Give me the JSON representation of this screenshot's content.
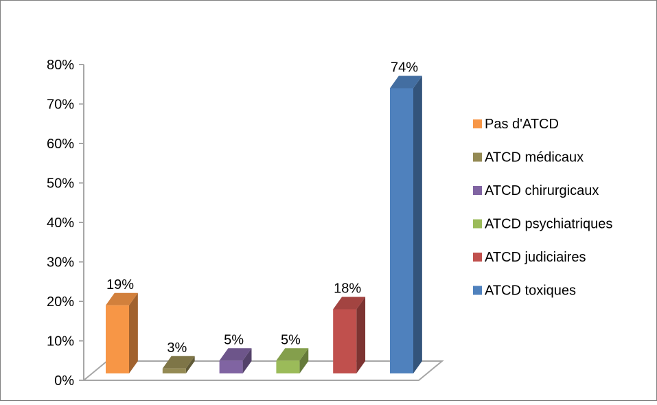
{
  "chart_data": {
    "type": "bar",
    "categories": [
      "Pas d'ATCD",
      "ATCD médicaux",
      "ATCD chirurgicaux",
      "ATCD psychiatriques",
      "ATCD judiciaires",
      "ATCD toxiques"
    ],
    "values": [
      19,
      3,
      5,
      5,
      18,
      74
    ],
    "value_labels": [
      "19%",
      "3%",
      "5%",
      "5%",
      "18%",
      "74%"
    ],
    "colors": [
      "#f79646",
      "#948a54",
      "#8064a2",
      "#9bbb59",
      "#c0504d",
      "#4f81bd"
    ],
    "ylim": [
      0,
      80
    ],
    "y_ticks": [
      "0%",
      "10%",
      "20%",
      "30%",
      "40%",
      "50%",
      "60%",
      "70%",
      "80%"
    ],
    "legend": "right",
    "grid": false,
    "style": "3d"
  }
}
